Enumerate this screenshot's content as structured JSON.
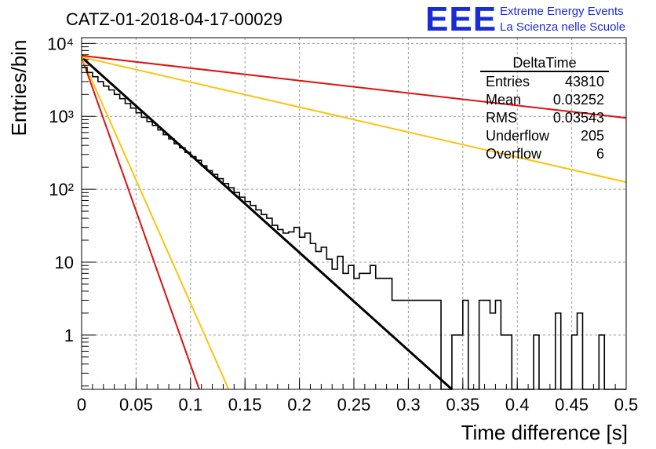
{
  "logo": {
    "mark": "EEE",
    "line1": "Extreme Energy Events",
    "line2": "La Scienza nelle Scuole",
    "color": "#1a2bd8"
  },
  "chart_data": {
    "type": "histogram",
    "title": "CATZ-01-2018-04-17-00029",
    "xlabel": "Time difference [s]",
    "ylabel": "Entries/bin",
    "xlim": [
      0,
      0.5
    ],
    "ylim": [
      0.18,
      12000
    ],
    "yscale": "log",
    "grid": true,
    "x_ticks": [
      0,
      0.05,
      0.1,
      0.15,
      0.2,
      0.25,
      0.3,
      0.35,
      0.4,
      0.45,
      0.5
    ],
    "x_tick_labels": [
      "0",
      "0.05",
      "0.1",
      "0.15",
      "0.2",
      "0.25",
      "0.3",
      "0.35",
      "0.4",
      "0.45",
      "0.5"
    ],
    "y_ticks": [
      1,
      10,
      100,
      1000,
      10000
    ],
    "y_tick_labels": [
      "1",
      "10",
      "10²",
      "10³",
      "10⁴"
    ],
    "bin_width": 0.005,
    "histogram": {
      "color": "#000000",
      "counts": [
        4700,
        4000,
        3500,
        3000,
        2600,
        2300,
        2000,
        1750,
        1500,
        1300,
        1120,
        970,
        850,
        750,
        650,
        560,
        490,
        420,
        370,
        320,
        280,
        250,
        210,
        180,
        160,
        140,
        120,
        105,
        90,
        78,
        68,
        60,
        52,
        45,
        40,
        32,
        28,
        25,
        26,
        30,
        22,
        25,
        18,
        14,
        16,
        11,
        8,
        12,
        7,
        9,
        6,
        7,
        7,
        9,
        6,
        6,
        6,
        3,
        3,
        3,
        3,
        3,
        3,
        3,
        3,
        3,
        0,
        0,
        1,
        1,
        3,
        0,
        0,
        3,
        3,
        2,
        3,
        1,
        1,
        0,
        0,
        0,
        0,
        1,
        0,
        0,
        0,
        2,
        0,
        0,
        1,
        2,
        0,
        0,
        0,
        1,
        0,
        0,
        0,
        0
      ]
    },
    "fits": [
      {
        "color": "#000000",
        "width": 3,
        "points": [
          [
            0,
            6500
          ],
          [
            0.34,
            0.18
          ]
        ]
      },
      {
        "color": "#dd1111",
        "width": 2,
        "points": [
          [
            0,
            6500
          ],
          [
            0.108,
            0.18
          ]
        ]
      },
      {
        "color": "#ffc20e",
        "width": 2,
        "points": [
          [
            0,
            6500
          ],
          [
            0.135,
            0.18
          ]
        ]
      },
      {
        "color": "#dd1111",
        "width": 2,
        "points": [
          [
            0,
            6800
          ],
          [
            0.5,
            950
          ]
        ]
      },
      {
        "color": "#ffc20e",
        "width": 2,
        "points": [
          [
            0,
            6500
          ],
          [
            0.5,
            125
          ]
        ]
      }
    ],
    "stats": {
      "title": "DeltaTime",
      "rows": [
        {
          "label": "Entries",
          "value": "43810"
        },
        {
          "label": "Mean",
          "value": "0.03252"
        },
        {
          "label": "RMS",
          "value": "0.03543"
        },
        {
          "label": "Underflow",
          "value": "205"
        },
        {
          "label": "Overflow",
          "value": "6"
        }
      ]
    }
  }
}
